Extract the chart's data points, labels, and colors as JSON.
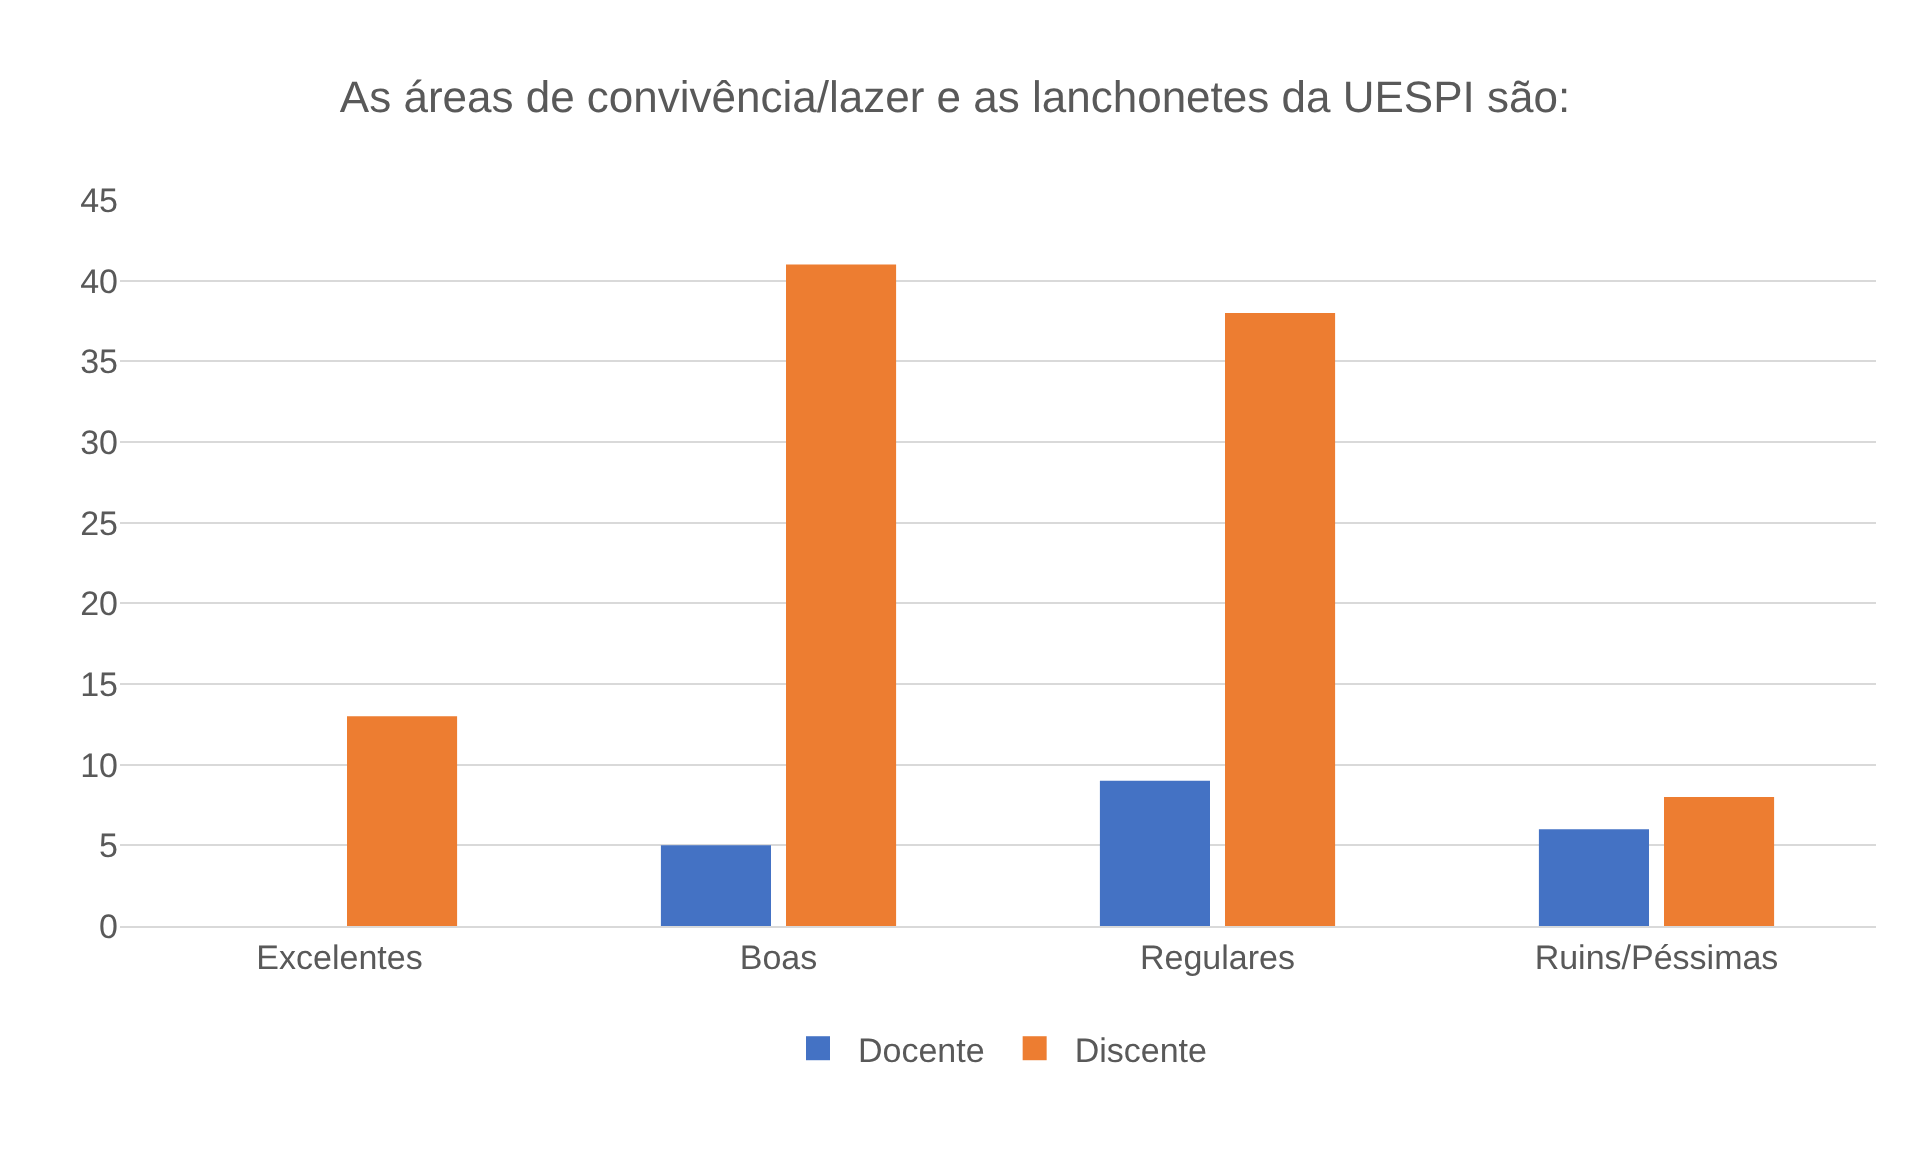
{
  "chart_data": {
    "type": "bar",
    "title": "As áreas de convivência/lazer e as lanchonetes da UESPI são:",
    "categories": [
      "Excelentes",
      "Boas",
      "Regulares",
      "Ruins/Péssimas"
    ],
    "series": [
      {
        "name": "Docente",
        "color": "#4472c4",
        "values": [
          0,
          5,
          9,
          6
        ]
      },
      {
        "name": "Discente",
        "color": "#ed7d31",
        "values": [
          13,
          41,
          38,
          8
        ]
      }
    ],
    "ylim": [
      0,
      45
    ],
    "yticks": [
      0,
      5,
      10,
      15,
      20,
      25,
      30,
      35,
      40,
      45
    ],
    "grid": "y",
    "legend": "bottom"
  }
}
